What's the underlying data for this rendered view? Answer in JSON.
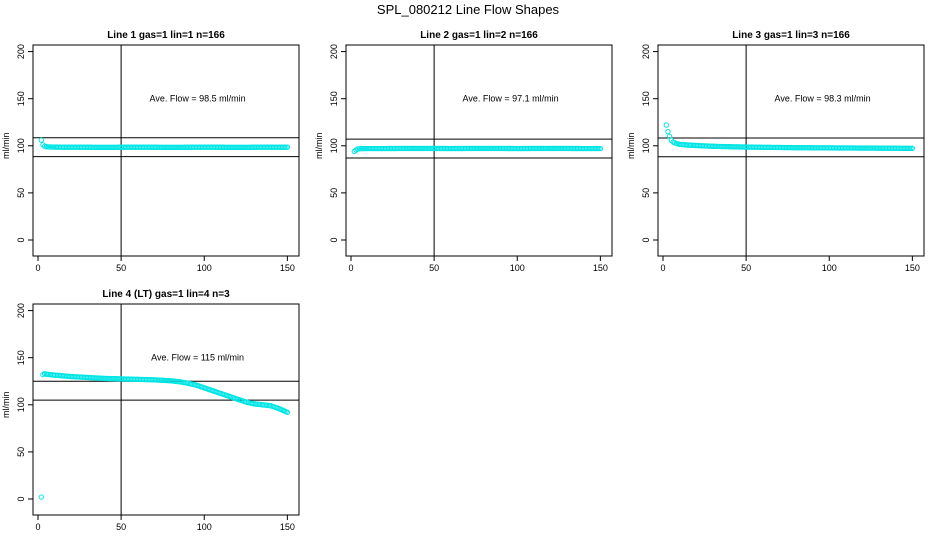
{
  "title": "SPL_080212  Line Flow Shapes",
  "colors": {
    "points": "#00e5e5",
    "lines": "#000000",
    "background": "#ffffff"
  },
  "chart_data": [
    {
      "type": "scatter",
      "title": "Line 1 gas=1 lin=1 n=166",
      "xlabel": "",
      "ylabel": "ml/min",
      "xlim": [
        -3,
        157
      ],
      "ylim": [
        -17,
        207
      ],
      "xticks": [
        "0",
        "50",
        "100",
        "150"
      ],
      "yticks": [
        "0",
        "50",
        "100",
        "150",
        "200"
      ],
      "annotation": "Ave. Flow = 98.5 ml/min",
      "vline_x": 50,
      "hlines_y": [
        88.5,
        108.5
      ],
      "series": [
        {
          "x": [
            2,
            3,
            4,
            5,
            7,
            10,
            20,
            40,
            60,
            80,
            100,
            120,
            140,
            150
          ],
          "y": [
            106,
            101,
            99.5,
            99,
            98.8,
            98.6,
            98.5,
            98.4,
            98.5,
            98.4,
            98.5,
            98.4,
            98.5,
            98.5
          ]
        }
      ]
    },
    {
      "type": "scatter",
      "title": "Line 2 gas=1 lin=2 n=166",
      "xlabel": "",
      "ylabel": "ml/min",
      "xlim": [
        -3,
        157
      ],
      "ylim": [
        -17,
        207
      ],
      "xticks": [
        "0",
        "50",
        "100",
        "150"
      ],
      "yticks": [
        "0",
        "50",
        "100",
        "150",
        "200"
      ],
      "annotation": "Ave. Flow = 97.1 ml/min",
      "vline_x": 50,
      "hlines_y": [
        87.1,
        107.1
      ],
      "series": [
        {
          "x": [
            2,
            3,
            4,
            6,
            10,
            20,
            40,
            60,
            80,
            100,
            120,
            140,
            150
          ],
          "y": [
            94,
            95.5,
            96.5,
            97,
            97.1,
            97.1,
            97.2,
            97.1,
            97.2,
            97.1,
            97.2,
            97.1,
            97.1
          ]
        }
      ]
    },
    {
      "type": "scatter",
      "title": "Line 3 gas=1 lin=3 n=166",
      "xlabel": "",
      "ylabel": "ml/min",
      "xlim": [
        -3,
        157
      ],
      "ylim": [
        -17,
        207
      ],
      "xticks": [
        "0",
        "50",
        "100",
        "150"
      ],
      "yticks": [
        "0",
        "50",
        "100",
        "150",
        "200"
      ],
      "annotation": "Ave. Flow = 98.3 ml/min",
      "vline_x": 50,
      "hlines_y": [
        88.3,
        108.3
      ],
      "series": [
        {
          "x": [
            2,
            3,
            4,
            5,
            6,
            8,
            10,
            15,
            20,
            30,
            40,
            50,
            60,
            70,
            80,
            90,
            100,
            110,
            120,
            130,
            140,
            150
          ],
          "y": [
            122,
            115,
            110,
            106,
            104,
            102.5,
            101.5,
            100.8,
            100.3,
            99.5,
            99,
            98.7,
            98.4,
            98.2,
            98,
            97.9,
            97.8,
            97.7,
            97.6,
            97.5,
            97.4,
            97.3
          ]
        }
      ]
    },
    {
      "type": "scatter",
      "title": "Line 4 (LT) gas=1 lin=4 n=3",
      "xlabel": "",
      "ylabel": "ml/min",
      "xlim": [
        -3,
        157
      ],
      "ylim": [
        -17,
        207
      ],
      "xticks": [
        "0",
        "50",
        "100",
        "150"
      ],
      "yticks": [
        "0",
        "50",
        "100",
        "150",
        "200"
      ],
      "annotation": "Ave. Flow = 115 ml/min",
      "vline_x": 50,
      "hlines_y": [
        105,
        125
      ],
      "series": [
        {
          "x": [
            2,
            3,
            4,
            5,
            10,
            20,
            30,
            40,
            50,
            60,
            70,
            80,
            85,
            90,
            95,
            100,
            105,
            110,
            115,
            120,
            125,
            130,
            135,
            140,
            145,
            150
          ],
          "y": [
            2,
            132,
            133,
            132.5,
            131.5,
            130,
            129,
            128,
            127.5,
            127,
            126.5,
            125.5,
            124.5,
            123,
            121,
            118,
            115,
            112,
            109,
            106,
            103,
            101,
            100,
            99,
            96,
            92
          ]
        }
      ]
    }
  ]
}
